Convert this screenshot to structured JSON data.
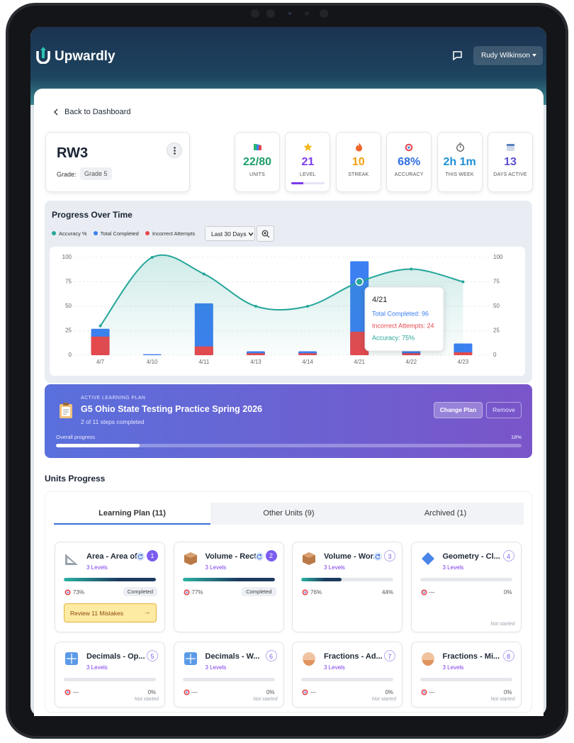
{
  "header": {
    "brand": "Upwardly",
    "user": "Rudy Wilkinson"
  },
  "nav": {
    "back": "Back to Dashboard"
  },
  "student": {
    "name": "RW3",
    "grade_label": "Grade:",
    "grade": "Grade 5"
  },
  "stats": [
    {
      "value": "22/80",
      "label": "UNITS",
      "color": "#1e9e6a"
    },
    {
      "value": "21",
      "label": "LEVEL",
      "color": "#7c3aed",
      "progress": 35
    },
    {
      "value": "10",
      "label": "STREAK",
      "color": "#f59e0b"
    },
    {
      "value": "68%",
      "label": "ACCURACY",
      "color": "#2f6fdf"
    },
    {
      "value": "2h 1m",
      "label": "THIS WEEK",
      "color": "#1d8fd6"
    },
    {
      "value": "13",
      "label": "DAYS ACTIVE",
      "color": "#5b4dd6"
    }
  ],
  "chart_data": {
    "type": "bar",
    "title": "Progress Over Time",
    "range": "Last 30 Days",
    "categories": [
      "4/7",
      "4/10",
      "4/11",
      "4/13",
      "4/14",
      "4/21",
      "4/22",
      "4/23"
    ],
    "series": [
      {
        "name": "Accuracy %",
        "type": "line",
        "axis": "y2",
        "color": "#26a69a",
        "values": [
          30,
          100,
          83,
          50,
          50,
          75,
          88,
          75
        ]
      },
      {
        "name": "Total Completed",
        "color": "#3b7ff0",
        "values": [
          27,
          1,
          53,
          4,
          4,
          96,
          5,
          12
        ]
      },
      {
        "name": "Incorrect Attempts",
        "color": "#e5484d",
        "values": [
          19,
          0,
          9,
          2,
          2,
          24,
          2,
          3
        ]
      }
    ],
    "ylim": [
      0,
      100
    ],
    "yticks": [
      0,
      25,
      50,
      75,
      100
    ],
    "y2lim": [
      0,
      100
    ],
    "y2ticks": [
      0,
      25,
      50,
      75,
      100
    ],
    "grid": true,
    "tooltip": {
      "title": "4/21",
      "lines": [
        "Total Completed: 96",
        "Incorrect Attempts: 24",
        "Accuracy: 75%"
      ]
    }
  },
  "plan": {
    "tag": "ACTIVE LEARNING PLAN",
    "title": "G5 Ohio State Testing Practice Spring 2026",
    "steps": "2 of 11 steps completed",
    "change": "Change Plan",
    "remove": "Remove",
    "progress_label": "Overall progress",
    "progress_text": "18%",
    "progress": 18
  },
  "units": {
    "title": "Units Progress",
    "tabs": [
      "Learning Plan (11)",
      "Other Units (9)",
      "Archived (1)"
    ],
    "cards": [
      {
        "title": "Area - Area of...",
        "levels": "3 Levels",
        "badge": "1",
        "icon": "triangle",
        "progress": 100,
        "accuracy": "73%",
        "status": "Completed",
        "review": "Review 11 Mistakes",
        "review_arrow": "→"
      },
      {
        "title": "Volume - Rect...",
        "levels": "3 Levels",
        "badge": "2",
        "icon": "box",
        "progress": 100,
        "accuracy": "77%",
        "status": "Completed"
      },
      {
        "title": "Volume - Wor...",
        "levels": "3 Levels",
        "badge": "3",
        "icon": "box",
        "progress": 44,
        "accuracy": "76%",
        "percent": "44%"
      },
      {
        "title": "Geometry - Cl...",
        "levels": "3 Levels",
        "badge": "4",
        "icon": "diamond",
        "progress": 0,
        "accuracy": "—",
        "percent": "0%",
        "note": "Not started"
      },
      {
        "title": "Decimals - Op...",
        "levels": "3 Levels",
        "badge": "5",
        "icon": "tiles",
        "progress": 0,
        "accuracy": "—",
        "percent": "0%",
        "note": "Not started"
      },
      {
        "title": "Decimals - W...",
        "levels": "3 Levels",
        "badge": "6",
        "icon": "tiles",
        "progress": 0,
        "accuracy": "—",
        "percent": "0%",
        "note": "Not started"
      },
      {
        "title": "Fractions - Ad...",
        "levels": "3 Levels",
        "badge": "7",
        "icon": "ball",
        "progress": 0,
        "accuracy": "—",
        "percent": "0%",
        "note": "Not started"
      },
      {
        "title": "Fractions - Mi...",
        "levels": "3 Levels",
        "badge": "8",
        "icon": "ball",
        "progress": 0,
        "accuracy": "—",
        "percent": "0%",
        "note": "Not started"
      }
    ]
  }
}
